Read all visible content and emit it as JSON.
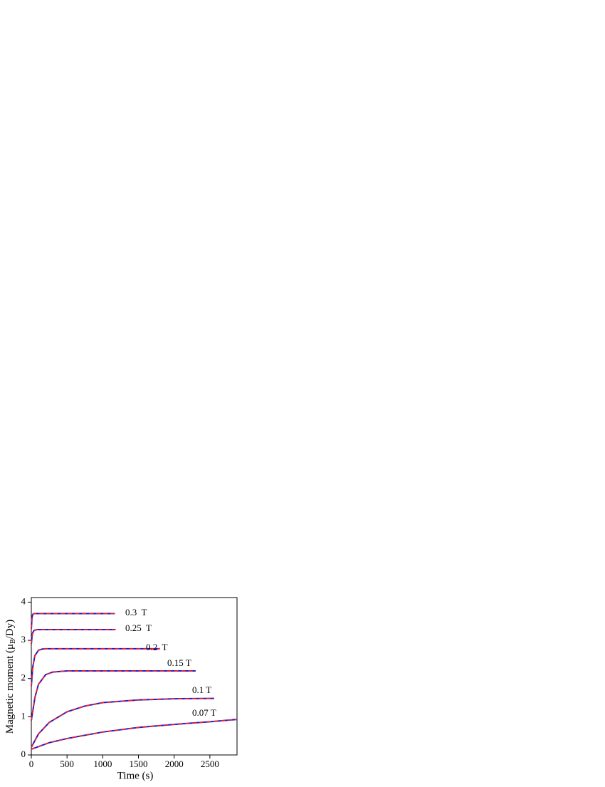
{
  "chart_data": {
    "type": "line",
    "xlabel": "Time (s)",
    "ylabel": [
      "Magnetic moment (μ",
      "B",
      "/Dy)"
    ],
    "xlim": [
      0,
      2880
    ],
    "ylim": [
      0,
      4.12
    ],
    "xticks": [
      0,
      500,
      1000,
      1500,
      2000,
      2500
    ],
    "yticks": [
      0,
      1,
      2,
      3,
      4
    ],
    "fit_color": "#ff2020",
    "series": [
      {
        "name": "0.3  T",
        "color": "#1a1acc",
        "x": [
          0,
          10,
          20,
          40,
          100,
          500,
          1170
        ],
        "values": [
          3.3,
          3.6,
          3.68,
          3.7,
          3.7,
          3.7,
          3.7
        ],
        "fit_values": [
          3.3,
          3.6,
          3.68,
          3.7,
          3.7,
          3.7,
          3.7
        ]
      },
      {
        "name": "0.25  T",
        "color": "#1a1acc",
        "x": [
          0,
          10,
          20,
          40,
          80,
          500,
          1180
        ],
        "values": [
          2.9,
          3.1,
          3.2,
          3.26,
          3.28,
          3.28,
          3.28
        ],
        "fit_values": [
          2.9,
          3.1,
          3.2,
          3.26,
          3.28,
          3.28,
          3.28
        ]
      },
      {
        "name": "0.2  T",
        "color": "#1a1acc",
        "x": [
          0,
          20,
          50,
          100,
          150,
          200,
          500,
          1800
        ],
        "values": [
          1.8,
          2.3,
          2.6,
          2.74,
          2.77,
          2.78,
          2.78,
          2.78
        ],
        "fit_values": [
          1.8,
          2.3,
          2.6,
          2.74,
          2.77,
          2.78,
          2.78,
          2.78
        ]
      },
      {
        "name": "0.15 T",
        "color": "#1a1acc",
        "x": [
          0,
          50,
          100,
          200,
          300,
          500,
          1000,
          2300
        ],
        "values": [
          0.9,
          1.5,
          1.85,
          2.1,
          2.17,
          2.2,
          2.2,
          2.2
        ],
        "fit_values": [
          0.9,
          1.5,
          1.85,
          2.1,
          2.17,
          2.2,
          2.2,
          2.2
        ]
      },
      {
        "name": "0.1 T",
        "color": "#1a1acc",
        "x": [
          0,
          100,
          250,
          500,
          750,
          1000,
          1500,
          2000,
          2560
        ],
        "values": [
          0.2,
          0.55,
          0.85,
          1.13,
          1.28,
          1.37,
          1.44,
          1.47,
          1.48
        ],
        "fit_values": [
          0.2,
          0.55,
          0.85,
          1.13,
          1.28,
          1.37,
          1.44,
          1.47,
          1.48
        ]
      },
      {
        "name": "0.07 T",
        "color": "#1a1acc",
        "x": [
          0,
          250,
          500,
          1000,
          1500,
          2000,
          2500,
          2880
        ],
        "values": [
          0.15,
          0.32,
          0.43,
          0.6,
          0.72,
          0.8,
          0.87,
          0.93
        ],
        "fit_values": [
          0.15,
          0.32,
          0.43,
          0.6,
          0.72,
          0.8,
          0.87,
          0.93
        ]
      }
    ]
  }
}
